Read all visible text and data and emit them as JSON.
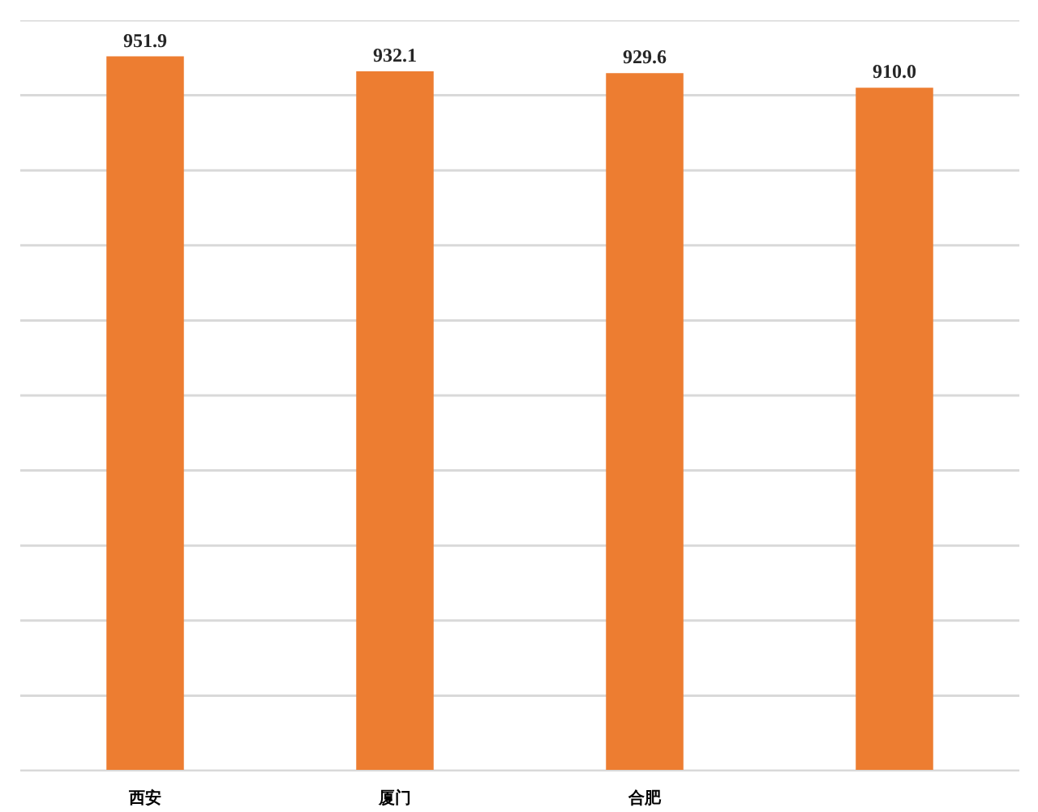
{
  "chart_data": {
    "type": "bar",
    "categories": [
      "西安",
      "厦门",
      "合肥",
      null
    ],
    "values": [
      951.9,
      932.1,
      929.6,
      910.0
    ],
    "value_labels": [
      "951.9",
      "932.1",
      "929.6",
      "910.0"
    ],
    "color": "#ed7d31",
    "ylim": [
      0,
      1000
    ],
    "yticks": [
      {
        "value": 0,
        "label": null
      },
      {
        "value": 100,
        "label": null
      },
      {
        "value": 200,
        "label": null
      },
      {
        "value": 300,
        "label": null
      },
      {
        "value": 400,
        "label": null
      },
      {
        "value": 500,
        "label": null
      },
      {
        "value": 600,
        "label": null
      },
      {
        "value": 700,
        "label": null
      },
      {
        "value": 800,
        "label": null
      },
      {
        "value": 900,
        "label": null
      },
      {
        "value": 1000,
        "label": null
      }
    ],
    "grid": "y",
    "tick_labels": "x"
  }
}
